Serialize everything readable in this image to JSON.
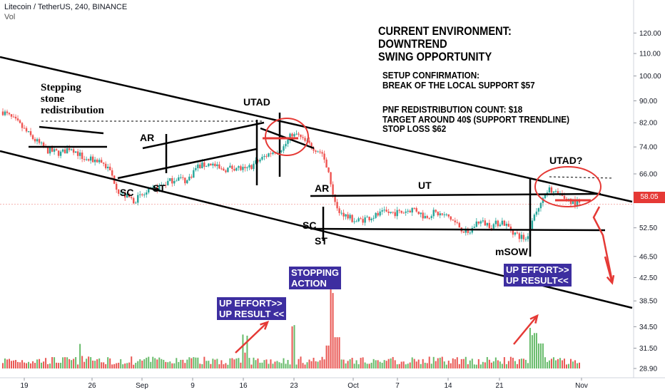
{
  "header": {
    "symbol_line": "Litecoin / TetherUS, 240, BINANCE",
    "volume_label": "Vol"
  },
  "colors": {
    "up": "#26a69a",
    "down": "#ef5350",
    "vol_up": "#4caf50",
    "vol_down": "#e53935",
    "annotation_red": "#e53935",
    "box_bg": "#3d2ea0"
  },
  "chart_data": {
    "type": "candlestick",
    "y_scale": "log",
    "ylim": [
      28.9,
      128
    ],
    "y_ticks": [
      "120.00",
      "110.00",
      "100.00",
      "90.00",
      "82.00",
      "74.00",
      "66.00",
      "58.05",
      "52.50",
      "46.50",
      "42.50",
      "38.50",
      "34.50",
      "31.50",
      "28.90"
    ],
    "x_ticks": [
      "19",
      "26",
      "Sep",
      "9",
      "16",
      "23",
      "Oct",
      "7",
      "14",
      "21",
      "Nov"
    ],
    "last_price": "58.05",
    "price_path": [
      [
        0,
        86
      ],
      [
        3,
        82
      ],
      [
        6,
        77
      ],
      [
        9,
        73
      ],
      [
        12,
        72
      ],
      [
        14,
        74
      ],
      [
        17,
        70
      ],
      [
        20,
        70
      ],
      [
        22,
        67
      ],
      [
        24,
        61
      ],
      [
        27,
        59
      ],
      [
        30,
        61
      ],
      [
        33,
        63
      ],
      [
        36,
        65
      ],
      [
        38,
        64
      ],
      [
        40,
        68
      ],
      [
        43,
        69
      ],
      [
        45,
        67
      ],
      [
        48,
        68
      ],
      [
        50,
        67
      ],
      [
        53,
        70
      ],
      [
        55,
        72
      ],
      [
        58,
        74
      ],
      [
        60,
        79
      ],
      [
        62,
        76
      ],
      [
        64,
        74
      ],
      [
        66,
        72
      ],
      [
        68,
        62
      ],
      [
        69,
        57
      ],
      [
        71,
        55
      ],
      [
        73,
        54
      ],
      [
        76,
        55
      ],
      [
        79,
        56
      ],
      [
        82,
        56
      ],
      [
        85,
        57
      ],
      [
        87,
        55
      ],
      [
        89,
        56
      ],
      [
        92,
        55
      ],
      [
        94,
        53
      ],
      [
        96,
        51
      ],
      [
        98,
        54
      ],
      [
        101,
        53
      ],
      [
        103,
        54
      ],
      [
        106,
        51
      ],
      [
        108,
        50
      ],
      [
        110,
        56
      ],
      [
        112,
        60
      ],
      [
        113,
        62
      ],
      [
        115,
        60
      ],
      [
        117,
        59
      ],
      [
        119,
        58
      ]
    ],
    "volume_spikes": [
      {
        "idx": 68,
        "vol": 1.0
      },
      {
        "idx": 69,
        "vol": 0.75
      },
      {
        "idx": 67,
        "vol": 0.55
      },
      {
        "idx": 110,
        "vol": 0.85
      },
      {
        "idx": 111,
        "vol": 0.6
      },
      {
        "idx": 109,
        "vol": 0.45
      },
      {
        "idx": 50,
        "vol": 0.38
      },
      {
        "idx": 60,
        "vol": 0.5
      },
      {
        "idx": 16,
        "vol": 0.3
      }
    ]
  },
  "annotations": {
    "env_title": [
      "CURRENT ENVIRONMENT:",
      "DOWNTREND",
      "SWING OPPORTUNITY"
    ],
    "setup": [
      "SETUP CONFIRMATION:",
      "BREAK OF THE LOCAL SUPPORT $57"
    ],
    "count": [
      "PNF REDISTRIBUTION COUNT: $18",
      "TARGET AROUND 40$ (SUPPORT TRENDLINE)",
      "STOP LOSS $62"
    ],
    "stepping": [
      "Stepping",
      "stone",
      "redistribution"
    ],
    "labels": {
      "ar1": "AR",
      "sc1": "SC",
      "st1": "ST",
      "utad1": "UTAD",
      "ar2": "AR",
      "sc2": "SC",
      "st2": "ST",
      "ut": "UT",
      "utad2": "UTAD?",
      "msow": "mSOW"
    },
    "boxes": {
      "effort_left": [
        "UP EFFORT>>",
        "UP RESULT <<"
      ],
      "stopping": [
        "STOPPING",
        "ACTION"
      ],
      "effort_right": [
        "UP EFFORT>>",
        "UP RESULT<<"
      ]
    }
  }
}
